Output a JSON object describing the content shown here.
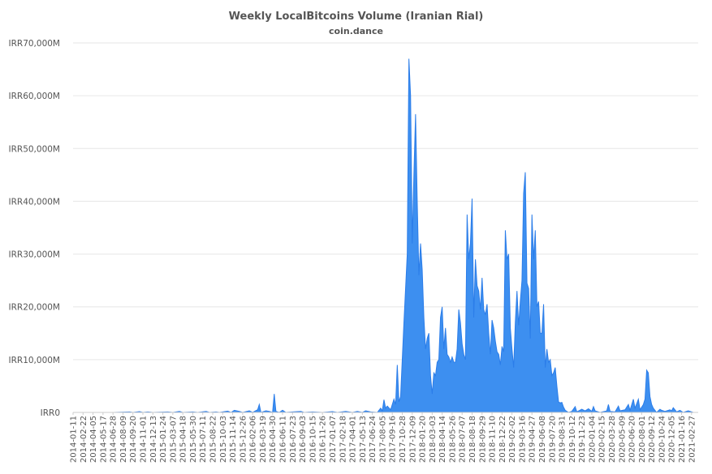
{
  "chart_data": {
    "type": "area",
    "title": "Weekly LocalBitcoins Volume (Iranian Rial)",
    "subtitle": "coin.dance",
    "xlabel": "",
    "ylabel": "",
    "ylim": [
      0,
      70000000
    ],
    "grid": true,
    "legend": "none",
    "colors": {
      "fill": "#3d8ff0",
      "line": "#2b7de9",
      "grid": "#e6e6e6",
      "text": "#555555"
    },
    "y_ticks": [
      0,
      10000000,
      20000000,
      30000000,
      40000000,
      50000000,
      60000000,
      70000000
    ],
    "y_tick_labels": [
      "IRR0",
      "IRR10,000M",
      "IRR20,000M",
      "IRR30,000M",
      "IRR40,000M",
      "IRR50,000M",
      "IRR60,000M",
      "IRR70,000M"
    ],
    "x_tick_labels": [
      "2014-01-11",
      "2014-02-22",
      "2014-04-05",
      "2014-05-17",
      "2014-06-28",
      "2014-08-09",
      "2014-09-20",
      "2014-11-01",
      "2014-12-13",
      "2015-01-24",
      "2015-03-07",
      "2015-04-18",
      "2015-05-30",
      "2015-07-11",
      "2015-08-22",
      "2015-10-03",
      "2015-11-14",
      "2015-12-26",
      "2016-02-06",
      "2016-03-19",
      "2016-04-30",
      "2016-06-11",
      "2016-07-23",
      "2016-09-03",
      "2016-10-15",
      "2016-11-26",
      "2017-01-07",
      "2017-02-18",
      "2017-04-01",
      "2017-05-13",
      "2017-06-24",
      "2017-08-05",
      "2017-09-16",
      "2017-10-28",
      "2017-12-09",
      "2018-01-20",
      "2018-03-03",
      "2018-04-14",
      "2018-05-26",
      "2018-07-07",
      "2018-08-18",
      "2018-09-29",
      "2018-11-10",
      "2018-12-22",
      "2019-02-02",
      "2019-03-16",
      "2019-04-27",
      "2019-06-08",
      "2019-07-20",
      "2019-08-31",
      "2019-10-12",
      "2019-11-23",
      "2020-01-04",
      "2020-02-15",
      "2020-03-28",
      "2020-05-09",
      "2020-06-20",
      "2020-08-01",
      "2020-09-12",
      "2020-10-24",
      "2020-12-05",
      "2021-01-16",
      "2021-02-27"
    ],
    "points": [
      [
        "2014-01-11",
        0
      ],
      [
        "2014-03-01",
        0
      ],
      [
        "2014-05-01",
        0
      ],
      [
        "2014-07-01",
        0
      ],
      [
        "2014-09-06",
        100000
      ],
      [
        "2014-09-20",
        0
      ],
      [
        "2014-10-18",
        150000
      ],
      [
        "2014-11-01",
        0
      ],
      [
        "2014-11-22",
        100000
      ],
      [
        "2014-12-13",
        0
      ],
      [
        "2015-02-14",
        100000
      ],
      [
        "2015-03-07",
        0
      ],
      [
        "2015-04-04",
        200000
      ],
      [
        "2015-04-18",
        0
      ],
      [
        "2015-05-30",
        100000
      ],
      [
        "2015-06-20",
        0
      ],
      [
        "2015-07-25",
        200000
      ],
      [
        "2015-08-08",
        0
      ],
      [
        "2015-09-05",
        100000
      ],
      [
        "2015-09-19",
        0
      ],
      [
        "2015-10-24",
        250000
      ],
      [
        "2015-11-07",
        0
      ],
      [
        "2015-11-21",
        400000
      ],
      [
        "2015-12-12",
        200000
      ],
      [
        "2015-12-26",
        0
      ],
      [
        "2016-01-23",
        300000
      ],
      [
        "2016-02-06",
        0
      ],
      [
        "2016-02-27",
        500000
      ],
      [
        "2016-03-05",
        1500000
      ],
      [
        "2016-03-12",
        0
      ],
      [
        "2016-04-02",
        300000
      ],
      [
        "2016-04-16",
        200000
      ],
      [
        "2016-04-30",
        0
      ],
      [
        "2016-05-07",
        3500000
      ],
      [
        "2016-05-14",
        200000
      ],
      [
        "2016-05-28",
        0
      ],
      [
        "2016-06-11",
        400000
      ],
      [
        "2016-06-25",
        0
      ],
      [
        "2016-07-23",
        100000
      ],
      [
        "2016-08-27",
        200000
      ],
      [
        "2016-09-10",
        0
      ],
      [
        "2016-10-15",
        100000
      ],
      [
        "2016-11-26",
        0
      ],
      [
        "2017-01-07",
        150000
      ],
      [
        "2017-01-28",
        0
      ],
      [
        "2017-03-04",
        200000
      ],
      [
        "2017-04-01",
        0
      ],
      [
        "2017-04-22",
        200000
      ],
      [
        "2017-05-13",
        0
      ],
      [
        "2017-05-27",
        300000
      ],
      [
        "2017-06-17",
        100000
      ],
      [
        "2017-07-15",
        0
      ],
      [
        "2017-07-29",
        800000
      ],
      [
        "2017-08-05",
        300000
      ],
      [
        "2017-08-12",
        2400000
      ],
      [
        "2017-08-19",
        800000
      ],
      [
        "2017-08-26",
        1200000
      ],
      [
        "2017-09-09",
        500000
      ],
      [
        "2017-09-23",
        2500000
      ],
      [
        "2017-09-30",
        1500000
      ],
      [
        "2017-10-07",
        9000000
      ],
      [
        "2017-10-14",
        2000000
      ],
      [
        "2017-10-21",
        3000000
      ],
      [
        "2017-11-04",
        17000000
      ],
      [
        "2017-11-18",
        30000000
      ],
      [
        "2017-11-25",
        67000000
      ],
      [
        "2017-12-02",
        60000000
      ],
      [
        "2017-12-09",
        32000000
      ],
      [
        "2017-12-16",
        45000000
      ],
      [
        "2017-12-23",
        56500000
      ],
      [
        "2017-12-30",
        40000000
      ],
      [
        "2018-01-06",
        26000000
      ],
      [
        "2018-01-13",
        32000000
      ],
      [
        "2018-01-20",
        27000000
      ],
      [
        "2018-01-27",
        18000000
      ],
      [
        "2018-02-03",
        12000000
      ],
      [
        "2018-02-10",
        14000000
      ],
      [
        "2018-02-17",
        15000000
      ],
      [
        "2018-02-24",
        7000000
      ],
      [
        "2018-03-03",
        3500000
      ],
      [
        "2018-03-10",
        7500000
      ],
      [
        "2018-03-17",
        7000000
      ],
      [
        "2018-03-24",
        9500000
      ],
      [
        "2018-03-31",
        10000000
      ],
      [
        "2018-04-07",
        18000000
      ],
      [
        "2018-04-14",
        20000000
      ],
      [
        "2018-04-21",
        12000000
      ],
      [
        "2018-04-28",
        16000000
      ],
      [
        "2018-05-05",
        11000000
      ],
      [
        "2018-05-12",
        10500000
      ],
      [
        "2018-05-19",
        9500000
      ],
      [
        "2018-05-26",
        10500000
      ],
      [
        "2018-06-02",
        9500000
      ],
      [
        "2018-06-09",
        9500000
      ],
      [
        "2018-06-16",
        12000000
      ],
      [
        "2018-06-23",
        19500000
      ],
      [
        "2018-06-30",
        17000000
      ],
      [
        "2018-07-07",
        13000000
      ],
      [
        "2018-07-14",
        11000000
      ],
      [
        "2018-07-21",
        10000000
      ],
      [
        "2018-07-28",
        37500000
      ],
      [
        "2018-08-04",
        29000000
      ],
      [
        "2018-08-11",
        32000000
      ],
      [
        "2018-08-18",
        40500000
      ],
      [
        "2018-08-25",
        18000000
      ],
      [
        "2018-09-01",
        29000000
      ],
      [
        "2018-09-08",
        24000000
      ],
      [
        "2018-09-15",
        23000000
      ],
      [
        "2018-09-22",
        19500000
      ],
      [
        "2018-09-29",
        25500000
      ],
      [
        "2018-10-06",
        19500000
      ],
      [
        "2018-10-13",
        18500000
      ],
      [
        "2018-10-20",
        20500000
      ],
      [
        "2018-10-27",
        15000000
      ],
      [
        "2018-11-03",
        11000000
      ],
      [
        "2018-11-10",
        17500000
      ],
      [
        "2018-11-17",
        16000000
      ],
      [
        "2018-11-24",
        13500000
      ],
      [
        "2018-12-01",
        11500000
      ],
      [
        "2018-12-08",
        11000000
      ],
      [
        "2018-12-15",
        9000000
      ],
      [
        "2018-12-22",
        12500000
      ],
      [
        "2018-12-29",
        11500000
      ],
      [
        "2019-01-05",
        34500000
      ],
      [
        "2019-01-12",
        29000000
      ],
      [
        "2019-01-19",
        30000000
      ],
      [
        "2019-01-26",
        16000000
      ],
      [
        "2019-02-02",
        12000000
      ],
      [
        "2019-02-09",
        8500000
      ],
      [
        "2019-02-16",
        17000000
      ],
      [
        "2019-02-23",
        23000000
      ],
      [
        "2019-03-02",
        16500000
      ],
      [
        "2019-03-09",
        21000000
      ],
      [
        "2019-03-16",
        25000000
      ],
      [
        "2019-03-23",
        41500000
      ],
      [
        "2019-03-30",
        45500000
      ],
      [
        "2019-04-06",
        24500000
      ],
      [
        "2019-04-13",
        23500000
      ],
      [
        "2019-04-20",
        14000000
      ],
      [
        "2019-04-27",
        37500000
      ],
      [
        "2019-05-04",
        29000000
      ],
      [
        "2019-05-11",
        34500000
      ],
      [
        "2019-05-18",
        20000000
      ],
      [
        "2019-05-25",
        21000000
      ],
      [
        "2019-06-01",
        15000000
      ],
      [
        "2019-06-08",
        15000000
      ],
      [
        "2019-06-15",
        20500000
      ],
      [
        "2019-06-22",
        8500000
      ],
      [
        "2019-06-29",
        12000000
      ],
      [
        "2019-07-06",
        9500000
      ],
      [
        "2019-07-13",
        10000000
      ],
      [
        "2019-07-20",
        7000000
      ],
      [
        "2019-07-27",
        7500000
      ],
      [
        "2019-08-03",
        8500000
      ],
      [
        "2019-08-10",
        5000000
      ],
      [
        "2019-08-17",
        2000000
      ],
      [
        "2019-08-24",
        1800000
      ],
      [
        "2019-08-31",
        1900000
      ],
      [
        "2019-09-07",
        1000000
      ],
      [
        "2019-09-14",
        400000
      ],
      [
        "2019-09-28",
        0
      ],
      [
        "2019-10-12",
        200000
      ],
      [
        "2019-10-26",
        1100000
      ],
      [
        "2019-11-02",
        100000
      ],
      [
        "2019-11-23",
        600000
      ],
      [
        "2019-12-07",
        300000
      ],
      [
        "2019-12-21",
        700000
      ],
      [
        "2020-01-04",
        200000
      ],
      [
        "2020-01-11",
        1100000
      ],
      [
        "2020-01-18",
        300000
      ],
      [
        "2020-02-08",
        0
      ],
      [
        "2020-03-07",
        300000
      ],
      [
        "2020-03-14",
        1500000
      ],
      [
        "2020-03-21",
        200000
      ],
      [
        "2020-04-11",
        100000
      ],
      [
        "2020-04-25",
        1200000
      ],
      [
        "2020-05-02",
        300000
      ],
      [
        "2020-05-23",
        500000
      ],
      [
        "2020-06-06",
        1500000
      ],
      [
        "2020-06-13",
        400000
      ],
      [
        "2020-06-27",
        2500000
      ],
      [
        "2020-07-04",
        800000
      ],
      [
        "2020-07-18",
        2500000
      ],
      [
        "2020-07-25",
        500000
      ],
      [
        "2020-08-08",
        1500000
      ],
      [
        "2020-08-15",
        2500000
      ],
      [
        "2020-08-22",
        8000000
      ],
      [
        "2020-08-29",
        7500000
      ],
      [
        "2020-09-05",
        3000000
      ],
      [
        "2020-09-12",
        1500000
      ],
      [
        "2020-09-19",
        800000
      ],
      [
        "2020-10-03",
        0
      ],
      [
        "2020-10-17",
        600000
      ],
      [
        "2020-10-24",
        400000
      ],
      [
        "2020-11-07",
        200000
      ],
      [
        "2020-11-28",
        500000
      ],
      [
        "2020-12-05",
        300000
      ],
      [
        "2020-12-12",
        900000
      ],
      [
        "2020-12-26",
        100000
      ],
      [
        "2021-01-09",
        400000
      ],
      [
        "2021-01-23",
        0
      ],
      [
        "2021-02-13",
        300000
      ],
      [
        "2021-03-06",
        0
      ],
      [
        "2021-03-27",
        0
      ]
    ]
  }
}
